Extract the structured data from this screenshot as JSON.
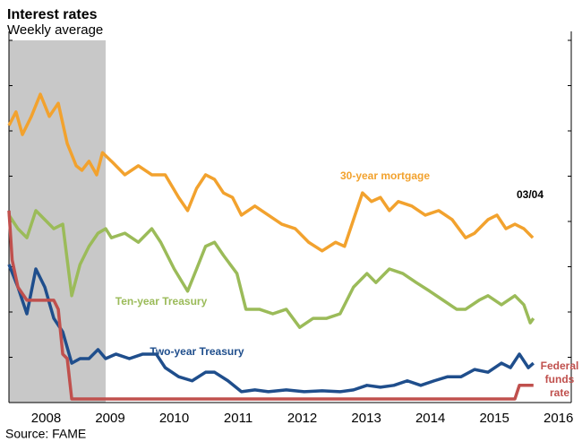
{
  "chart_data": {
    "type": "line",
    "title": "Interest rates",
    "subtitle": "Weekly average",
    "source": "Source: FAME",
    "annotation": "03/04",
    "xlim": [
      2007.92,
      2016.7
    ],
    "xticks": [
      {
        "value": 2008,
        "label": "2008"
      },
      {
        "value": 2009,
        "label": "2009"
      },
      {
        "value": 2010,
        "label": "2010"
      },
      {
        "value": 2011,
        "label": "2011"
      },
      {
        "value": 2012,
        "label": "2012"
      },
      {
        "value": 2013,
        "label": "2013"
      },
      {
        "value": 2014,
        "label": "2014"
      },
      {
        "value": 2015,
        "label": "2015"
      },
      {
        "value": 2016,
        "label": "2016"
      }
    ],
    "ylim": [
      0,
      8
    ],
    "yticks": [
      0,
      1,
      2,
      3,
      4,
      5,
      6,
      7,
      8
    ],
    "recession": [
      2007.92,
      2009.43
    ],
    "recession_color": "#c8c8c8",
    "series": [
      {
        "name": "30-year mortgage",
        "color": "#f2a22e",
        "x": [
          2007.92,
          2008.03,
          2008.13,
          2008.27,
          2008.41,
          2008.55,
          2008.69,
          2008.83,
          2008.97,
          2009.06,
          2009.17,
          2009.29,
          2009.38,
          2009.52,
          2009.73,
          2009.94,
          2010.15,
          2010.36,
          2010.57,
          2010.71,
          2010.85,
          2010.99,
          2011.13,
          2011.27,
          2011.41,
          2011.55,
          2011.76,
          2011.97,
          2012.18,
          2012.39,
          2012.6,
          2012.81,
          2013.02,
          2013.16,
          2013.3,
          2013.44,
          2013.58,
          2013.72,
          2013.86,
          2014.0,
          2014.21,
          2014.42,
          2014.63,
          2014.84,
          2015.05,
          2015.19,
          2015.4,
          2015.54,
          2015.68,
          2015.82,
          2015.96,
          2016.1
        ],
        "values": [
          6.12,
          6.42,
          5.92,
          6.32,
          6.81,
          6.32,
          6.61,
          5.72,
          5.23,
          5.13,
          5.33,
          5.03,
          5.52,
          5.33,
          5.03,
          5.23,
          5.03,
          5.03,
          4.53,
          4.24,
          4.73,
          5.03,
          4.93,
          4.63,
          4.53,
          4.14,
          4.34,
          4.14,
          3.94,
          3.84,
          3.54,
          3.35,
          3.54,
          3.45,
          4.04,
          4.63,
          4.44,
          4.53,
          4.24,
          4.44,
          4.34,
          4.14,
          4.24,
          4.04,
          3.64,
          3.74,
          4.04,
          4.14,
          3.84,
          3.94,
          3.84,
          3.64
        ]
      },
      {
        "name": "Ten-year Treasury",
        "color": "#9bbb59",
        "x": [
          2007.92,
          2008.06,
          2008.2,
          2008.34,
          2008.48,
          2008.62,
          2008.76,
          2008.9,
          2009.03,
          2009.17,
          2009.31,
          2009.43,
          2009.52,
          2009.73,
          2009.94,
          2010.15,
          2010.29,
          2010.5,
          2010.71,
          2010.85,
          2010.99,
          2011.13,
          2011.27,
          2011.48,
          2011.62,
          2011.83,
          2012.04,
          2012.25,
          2012.46,
          2012.67,
          2012.88,
          2013.09,
          2013.3,
          2013.51,
          2013.65,
          2013.86,
          2014.07,
          2014.28,
          2014.49,
          2014.7,
          2014.91,
          2015.05,
          2015.26,
          2015.4,
          2015.61,
          2015.82,
          2015.96,
          2016.06,
          2016.11
        ],
        "values": [
          4.14,
          3.84,
          3.64,
          4.24,
          4.04,
          3.84,
          3.94,
          2.36,
          3.05,
          3.45,
          3.74,
          3.84,
          3.64,
          3.74,
          3.54,
          3.84,
          3.54,
          2.95,
          2.46,
          2.95,
          3.45,
          3.54,
          3.25,
          2.85,
          2.06,
          2.06,
          1.96,
          2.06,
          1.66,
          1.86,
          1.86,
          1.96,
          2.55,
          2.85,
          2.65,
          2.95,
          2.85,
          2.65,
          2.46,
          2.26,
          2.06,
          2.06,
          2.26,
          2.36,
          2.16,
          2.36,
          2.16,
          1.76,
          1.86
        ]
      },
      {
        "name": "Two-year Treasury",
        "color": "#1f4e8c",
        "x": [
          2007.92,
          2008.06,
          2008.2,
          2008.34,
          2008.48,
          2008.62,
          2008.76,
          2008.9,
          2009.03,
          2009.17,
          2009.31,
          2009.43,
          2009.59,
          2009.8,
          2010.01,
          2010.22,
          2010.36,
          2010.57,
          2010.78,
          2010.99,
          2011.13,
          2011.34,
          2011.55,
          2011.76,
          2011.97,
          2012.25,
          2012.53,
          2012.81,
          2013.09,
          2013.3,
          2013.51,
          2013.72,
          2013.93,
          2014.14,
          2014.35,
          2014.56,
          2014.77,
          2014.98,
          2015.19,
          2015.4,
          2015.61,
          2015.75,
          2015.89,
          2016.03,
          2016.11
        ],
        "values": [
          3.05,
          2.55,
          1.96,
          2.95,
          2.55,
          1.86,
          1.56,
          0.87,
          0.97,
          0.97,
          1.17,
          0.97,
          1.07,
          0.97,
          1.07,
          1.07,
          0.77,
          0.57,
          0.48,
          0.67,
          0.67,
          0.48,
          0.24,
          0.28,
          0.24,
          0.28,
          0.24,
          0.26,
          0.24,
          0.28,
          0.38,
          0.34,
          0.38,
          0.48,
          0.38,
          0.48,
          0.57,
          0.57,
          0.73,
          0.67,
          0.87,
          0.77,
          1.07,
          0.77,
          0.87
        ]
      },
      {
        "name": "Federal funds rate",
        "color": "#c0504d",
        "x": [
          2007.92,
          2007.97,
          2008.06,
          2008.2,
          2008.62,
          2008.69,
          2008.76,
          2008.83,
          2008.9,
          2015.61,
          2015.82,
          2015.89,
          2016.11
        ],
        "values": [
          4.24,
          3.15,
          2.55,
          2.26,
          2.26,
          2.06,
          1.07,
          0.97,
          0.08,
          0.08,
          0.08,
          0.38,
          0.38
        ]
      }
    ]
  }
}
